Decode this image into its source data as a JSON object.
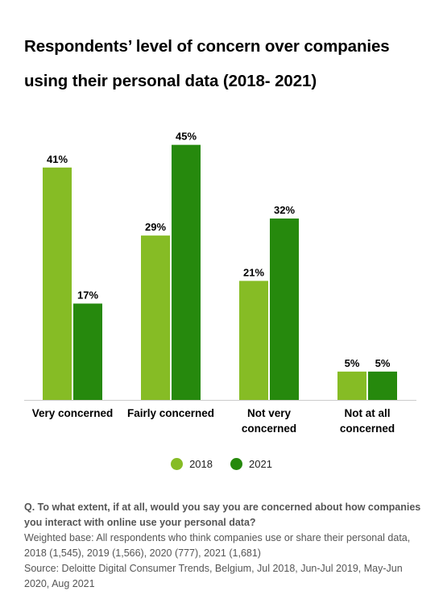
{
  "title": "Respondents’ level of concern over companies using their personal data (2018- 2021)",
  "colors": {
    "s2018": "#86bc25",
    "s2021": "#26890d",
    "axis": "#cccccc",
    "text": "#000000"
  },
  "chart_data": {
    "type": "bar",
    "categories": [
      "Very concerned",
      "Fairly concerned",
      "Not very concerned",
      "Not at all concerned"
    ],
    "series": [
      {
        "name": "2018",
        "values": [
          41,
          29,
          21,
          5
        ],
        "labels": [
          "41%",
          "29%",
          "21%",
          "5%"
        ]
      },
      {
        "name": "2021",
        "values": [
          17,
          45,
          32,
          5
        ],
        "labels": [
          "17%",
          "45%",
          "32%",
          "5%"
        ]
      }
    ],
    "ylim": [
      0,
      50
    ],
    "unit": "%",
    "grid": false,
    "legend_position": "bottom"
  },
  "legend": {
    "item_2018": "2018",
    "item_2021": "2021"
  },
  "footnote": {
    "question": "Q. To what extent, if at all, would you say you are concerned about how companies you interact with online use your personal data?",
    "base": "Weighted base: All respondents who think companies use or share their personal data, 2018 (1,545), 2019 (1,566), 2020 (777), 2021 (1,681)",
    "source": "Source: Deloitte Digital Consumer Trends, Belgium, Jul 2018, Jun-Jul 2019, May-Jun 2020, Aug 2021"
  }
}
